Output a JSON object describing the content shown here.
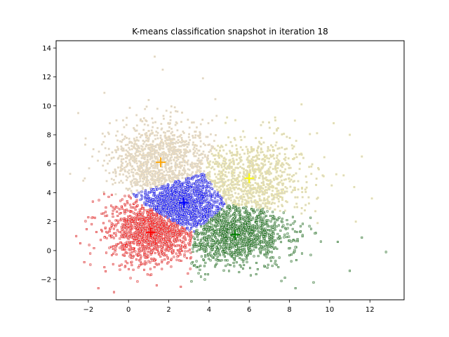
{
  "chart_data": {
    "type": "scatter",
    "title": "K-means classification snapshot in iteration 18",
    "xlabel": "",
    "ylabel": "",
    "xlim": [
      -3.6,
      13.7
    ],
    "ylim": [
      -3.4,
      14.5
    ],
    "x_ticks": [
      -2,
      0,
      2,
      4,
      6,
      8,
      10,
      12
    ],
    "y_ticks": [
      -2,
      0,
      2,
      4,
      6,
      8,
      10,
      12,
      14
    ],
    "x_tick_labels": [
      "−2",
      "0",
      "2",
      "4",
      "6",
      "8",
      "10",
      "12"
    ],
    "y_tick_labels": [
      "−2",
      "0",
      "2",
      "4",
      "6",
      "8",
      "10",
      "12",
      "14"
    ],
    "grid": false,
    "legend": "none",
    "point_fill": "#d3d3d3",
    "series": [
      {
        "edge_color": "#f5deb3",
        "centroid_color": "#ffa500",
        "centroid": [
          1.6,
          6.1
        ],
        "spread": [
          1.3,
          1.4
        ],
        "count": 1200,
        "points": [
          [
            -2.5,
            9.5
          ],
          [
            -2.9,
            5.3
          ],
          [
            -1.2,
            10.9
          ],
          [
            1.0,
            10.4
          ],
          [
            1.7,
            12.5
          ],
          [
            1.3,
            13.4
          ],
          [
            3.7,
            11.9
          ],
          [
            2.3,
            9.9
          ],
          [
            -0.6,
            9.0
          ],
          [
            -1.8,
            6.5
          ]
        ]
      },
      {
        "edge_color": "#f0e68c",
        "centroid_color": "#ffff00",
        "centroid": [
          6.0,
          5.0
        ],
        "spread": [
          1.4,
          1.4
        ],
        "count": 1000,
        "points": [
          [
            8.6,
            10.1
          ],
          [
            11.0,
            8.0
          ],
          [
            11.6,
            6.5
          ],
          [
            12.1,
            3.6
          ],
          [
            10.2,
            8.8
          ],
          [
            7.3,
            9.0
          ],
          [
            10.1,
            4.5
          ],
          [
            9.4,
            1.9
          ],
          [
            4.9,
            9.2
          ],
          [
            11.3,
            2.0
          ]
        ]
      },
      {
        "edge_color": "#0000ff",
        "centroid_color": "#0000ff",
        "centroid": [
          2.75,
          3.3
        ],
        "spread": [
          0.9,
          0.8
        ],
        "count": 900,
        "points": []
      },
      {
        "edge_color": "#ff0000",
        "centroid_color": "#ff0000",
        "centroid": [
          1.1,
          1.25
        ],
        "spread": [
          1.0,
          1.1
        ],
        "count": 1300,
        "points": [
          [
            -2.6,
            1.0
          ],
          [
            -2.2,
            -0.8
          ],
          [
            -2.4,
            0.5
          ],
          [
            -1.5,
            -2.6
          ],
          [
            0.1,
            -1.9
          ],
          [
            1.4,
            -2.4
          ],
          [
            2.6,
            -2.5
          ],
          [
            -2.0,
            2.3
          ]
        ]
      },
      {
        "edge_color": "#006400",
        "centroid_color": "#008000",
        "centroid": [
          5.3,
          1.1
        ],
        "spread": [
          1.4,
          1.0
        ],
        "count": 1300,
        "points": [
          [
            12.8,
            -0.1
          ],
          [
            11.0,
            -1.4
          ],
          [
            9.2,
            -2.2
          ],
          [
            8.3,
            -2.6
          ],
          [
            10.4,
            0.6
          ],
          [
            11.6,
            0.9
          ],
          [
            3.6,
            -1.8
          ],
          [
            7.6,
            -2.1
          ]
        ]
      }
    ]
  }
}
